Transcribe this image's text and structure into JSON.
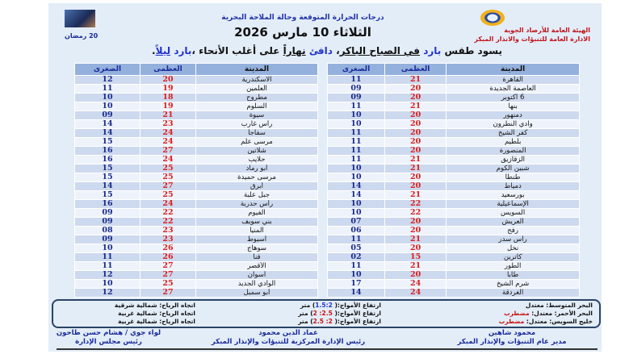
{
  "header": {
    "org_line1": "الهيئة العامة للأرصاد الجوية",
    "org_line2": "الادارة العامة للتنبؤات والانذار المبكر",
    "title": "درجات الحرارة المتوقعة وحالة الملاحة البحرية",
    "date": "الثلاثاء 10 مارس 2026",
    "hijri": "20 رمضان"
  },
  "summary": {
    "p1": "يسود طقس ",
    "w1": "بارد",
    "p2": " ",
    "w2": "في الصباح الباكر",
    "p3": "، ",
    "w3": "دافئ",
    "p4": " ",
    "w4": "نهاراً",
    "p5": " على أغلب الأنحاء ،",
    "w5": "بارد",
    "p6": " ",
    "w6": "ليلاً",
    "p7": "."
  },
  "columns": {
    "city": "المدينة",
    "max": "العظمى",
    "min": "الصغرى"
  },
  "colors": {
    "max": "#dd1c1c",
    "min": "#1a2a8a",
    "header": "#94b0dc"
  },
  "right_table": [
    [
      "القاهرة",
      "21",
      "11"
    ],
    [
      "العاصمة الجديدة",
      "20",
      "09"
    ],
    [
      "6 أكتوبر",
      "20",
      "09"
    ],
    [
      "بنها",
      "21",
      "11"
    ],
    [
      "دمنهور",
      "20",
      "10"
    ],
    [
      "وادي النطرون",
      "20",
      "10"
    ],
    [
      "كفر الشيخ",
      "20",
      "11"
    ],
    [
      "بلطيم",
      "20",
      "11"
    ],
    [
      "المنصورة",
      "20",
      "11"
    ],
    [
      "الزقازيق",
      "21",
      "11"
    ],
    [
      "شبين الكوم",
      "21",
      "10"
    ],
    [
      "طنطا",
      "20",
      "10"
    ],
    [
      "دمياط",
      "20",
      "14"
    ],
    [
      "بورسعيد",
      "21",
      "14"
    ],
    [
      "الإسماعيلية",
      "22",
      "10"
    ],
    [
      "السويس",
      "22",
      "10"
    ],
    [
      "العريش",
      "20",
      "07"
    ],
    [
      "رفح",
      "20",
      "06"
    ],
    [
      "رأس سدر",
      "21",
      "11"
    ],
    [
      "نخل",
      "20",
      "05"
    ],
    [
      "كاترين",
      "15",
      "02"
    ],
    [
      "الطور",
      "21",
      "11"
    ],
    [
      "طابا",
      "20",
      "10"
    ],
    [
      "شرم الشيخ",
      "24",
      "17"
    ],
    [
      "الغردقة",
      "24",
      "14"
    ]
  ],
  "left_table": [
    [
      "الاسكندرية",
      "20",
      "12"
    ],
    [
      "العلمين",
      "19",
      "11"
    ],
    [
      "مطروح",
      "18",
      "10"
    ],
    [
      "السلوم",
      "19",
      "10"
    ],
    [
      "سيوة",
      "21",
      "09"
    ],
    [
      "رأس غارب",
      "23",
      "14"
    ],
    [
      "سفاجا",
      "24",
      "14"
    ],
    [
      "مرسى علم",
      "24",
      "15"
    ],
    [
      "شلاتين",
      "27",
      "16"
    ],
    [
      "حلايب",
      "24",
      "16"
    ],
    [
      "أبو رماد",
      "25",
      "15"
    ],
    [
      "مرسى حميدة",
      "25",
      "15"
    ],
    [
      "أبرق",
      "27",
      "14"
    ],
    [
      "جبل علبة",
      "25",
      "15"
    ],
    [
      "رأس حدربة",
      "24",
      "16"
    ],
    [
      "الفيوم",
      "22",
      "09"
    ],
    [
      "بني سويف",
      "22",
      "09"
    ],
    [
      "المنيا",
      "23",
      "08"
    ],
    [
      "أسيوط",
      "23",
      "09"
    ],
    [
      "سوهاج",
      "26",
      "10"
    ],
    [
      "قنا",
      "26",
      "11"
    ],
    [
      "الأقصر",
      "27",
      "11"
    ],
    [
      "أسوان",
      "27",
      "12"
    ],
    [
      "الوادي الجديد",
      "25",
      "10"
    ],
    [
      "أبو سمبل",
      "27",
      "12"
    ]
  ],
  "sea": [
    {
      "name": "البحر المتوسط: ",
      "state": "معتدل",
      "rough": "",
      "waves_label": "ارتفاع الأمواج:(",
      "waves": " 1.5:2",
      "unit": ") متر",
      "wind": "اتجاه الرياح: شمالية شرقية"
    },
    {
      "name": "البحر الأحمر: معتدل: ",
      "state": "",
      "rough": "مضطرب",
      "waves_label": "ارتفاع الأمواج:(",
      "waves": " 2.5: 2",
      "unit": ") متر",
      "wind": "اتجاه الرياح: شمالية غربية"
    },
    {
      "name": "خليج السويس: معتدل: ",
      "state": "",
      "rough": "مضطرب",
      "waves_label": "ارتفاع الأمواج:(",
      "waves": " 2: 2.5",
      "unit": ") متر",
      "wind": "اتجاه الرياح: شمالية غربية"
    }
  ],
  "signatures": [
    {
      "name": "محمود شاهين",
      "role": "مدير عام التنبؤات والإنذار المبكر"
    },
    {
      "name": "عماد الدين محمود",
      "role": "رئيس الإدارة المركزية للتنبؤات والإنذار المبكر"
    },
    {
      "name": "لواء جوي / هشام حسن طاحون",
      "role": "رئيس مجلس الإدارة"
    }
  ]
}
